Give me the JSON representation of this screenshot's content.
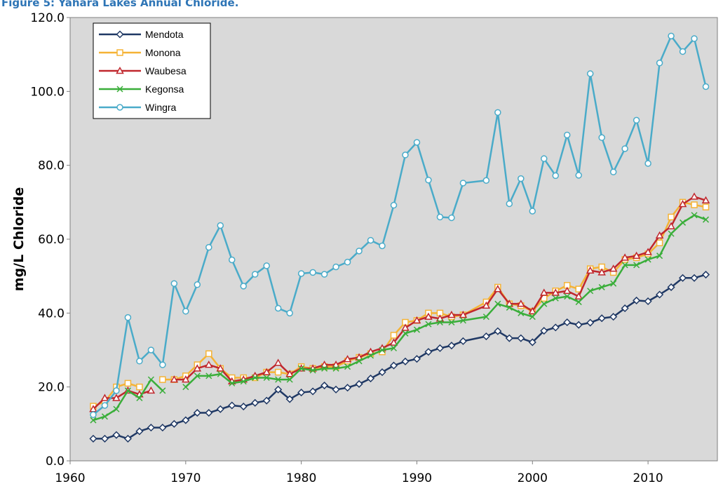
{
  "chart_data": {
    "type": "line",
    "title": "Figure 5: Yahara Lakes Annual Chloride.",
    "y_label": "mg/L Chloride",
    "x": [
      1962,
      1963,
      1964,
      1965,
      1966,
      1967,
      1968,
      1969,
      1970,
      1971,
      1972,
      1973,
      1974,
      1975,
      1976,
      1977,
      1978,
      1979,
      1980,
      1981,
      1982,
      1983,
      1984,
      1985,
      1986,
      1987,
      1988,
      1989,
      1990,
      1991,
      1992,
      1993,
      1994,
      1996,
      1997,
      1998,
      1999,
      2000,
      2001,
      2002,
      2003,
      2004,
      2005,
      2006,
      2007,
      2008,
      2009,
      2010,
      2011,
      2012,
      2013,
      2014,
      2015
    ],
    "series": [
      {
        "name": "Mendota",
        "color": "#1f3864",
        "marker": "diamond",
        "values": [
          6.0,
          6.0,
          7.0,
          6.0,
          8.0,
          9.0,
          9.0,
          10.0,
          11.0,
          13.0,
          13.0,
          14.0,
          15.0,
          14.7,
          15.7,
          16.3,
          19.3,
          16.7,
          18.5,
          18.8,
          20.4,
          19.3,
          19.8,
          20.8,
          22.3,
          24.0,
          25.8,
          26.9,
          27.6,
          29.5,
          30.5,
          31.2,
          32.4,
          33.7,
          35.1,
          33.2,
          33.2,
          32.1,
          35.2,
          36.1,
          37.5,
          36.8,
          37.4,
          38.6,
          39.0,
          41.3,
          43.4,
          43.2,
          45.0,
          47.0,
          49.5,
          49.5,
          50.4
        ]
      },
      {
        "name": "Monona",
        "color": "#f5b335",
        "marker": "square",
        "values": [
          14.8,
          16.0,
          20.0,
          21.0,
          20.0,
          null,
          22.0,
          22.0,
          23.0,
          26.0,
          29.0,
          25.0,
          22.5,
          22.5,
          22.5,
          24.0,
          24.0,
          23.5,
          25.5,
          25.0,
          25.5,
          25.5,
          27.0,
          28.0,
          29.0,
          29.5,
          34.0,
          37.5,
          38.0,
          40.0,
          40.0,
          39.0,
          39.5,
          43.0,
          47.0,
          42.5,
          42.0,
          40.5,
          44.0,
          46.0,
          47.5,
          46.5,
          52.0,
          52.5,
          51.0,
          54.5,
          55.0,
          56.0,
          59.0,
          66.0,
          70.0,
          69.3,
          68.7
        ]
      },
      {
        "name": "Waubesa",
        "color": "#c0272d",
        "marker": "triangle",
        "values": [
          14.0,
          17.0,
          17.0,
          19.0,
          18.0,
          19.0,
          null,
          22.0,
          22.0,
          25.0,
          26.0,
          25.0,
          21.5,
          22.0,
          23.0,
          24.0,
          26.5,
          23.5,
          25.0,
          25.0,
          26.0,
          26.0,
          27.5,
          28.0,
          29.5,
          30.5,
          32.0,
          36.0,
          38.0,
          39.0,
          38.5,
          39.5,
          39.5,
          42.0,
          46.5,
          42.5,
          42.5,
          40.5,
          45.5,
          45.5,
          46.0,
          44.5,
          51.5,
          51.0,
          52.0,
          55.0,
          55.5,
          56.5,
          61.0,
          63.5,
          69.5,
          71.5,
          70.5
        ]
      },
      {
        "name": "Kegonsa",
        "color": "#3aae3a",
        "marker": "x",
        "values": [
          11.0,
          12.0,
          14.0,
          19.0,
          17.0,
          22.0,
          19.0,
          null,
          20.0,
          23.0,
          23.0,
          23.5,
          21.0,
          21.5,
          22.5,
          22.5,
          22.0,
          22.0,
          25.0,
          24.5,
          25.0,
          25.0,
          25.5,
          27.0,
          28.5,
          30.0,
          30.5,
          34.5,
          35.5,
          37.0,
          37.5,
          37.5,
          38.0,
          39.0,
          42.5,
          41.5,
          40.0,
          39.0,
          42.5,
          44.0,
          44.5,
          43.0,
          46.0,
          47.0,
          48.0,
          53.0,
          53.0,
          54.5,
          55.5,
          61.5,
          64.5,
          66.5,
          65.3
        ]
      },
      {
        "name": "Wingra",
        "color": "#4aabc9",
        "marker": "circle",
        "values": [
          12.5,
          15.0,
          19.0,
          38.8,
          27.0,
          30.0,
          26.0,
          48.0,
          40.5,
          47.7,
          57.8,
          63.7,
          54.4,
          47.3,
          50.5,
          52.8,
          41.3,
          40.0,
          50.7,
          51.0,
          50.5,
          52.5,
          53.8,
          56.8,
          59.7,
          58.2,
          69.2,
          82.8,
          86.2,
          76.0,
          66.0,
          65.8,
          75.2,
          75.9,
          94.3,
          69.6,
          76.4,
          67.6,
          81.8,
          77.2,
          88.2,
          77.3,
          104.8,
          87.5,
          78.2,
          84.5,
          92.2,
          80.5,
          107.7,
          115.0,
          110.8,
          114.3,
          101.3
        ]
      }
    ],
    "xlim": [
      1960,
      2016
    ],
    "xticks": [
      1960,
      1970,
      1980,
      1990,
      2000,
      2010
    ],
    "ylim": [
      0,
      120
    ],
    "yticks": [
      {
        "value": 0,
        "label": "0.0"
      },
      {
        "value": 20,
        "label": "20.0"
      },
      {
        "value": 40,
        "label": "40.0"
      },
      {
        "value": 60,
        "label": "60.0"
      },
      {
        "value": 80,
        "label": "80.0"
      },
      {
        "value": 100,
        "label": "100.0"
      },
      {
        "value": 120,
        "label": "120.0"
      }
    ],
    "grid": false,
    "legend": "upper left"
  }
}
